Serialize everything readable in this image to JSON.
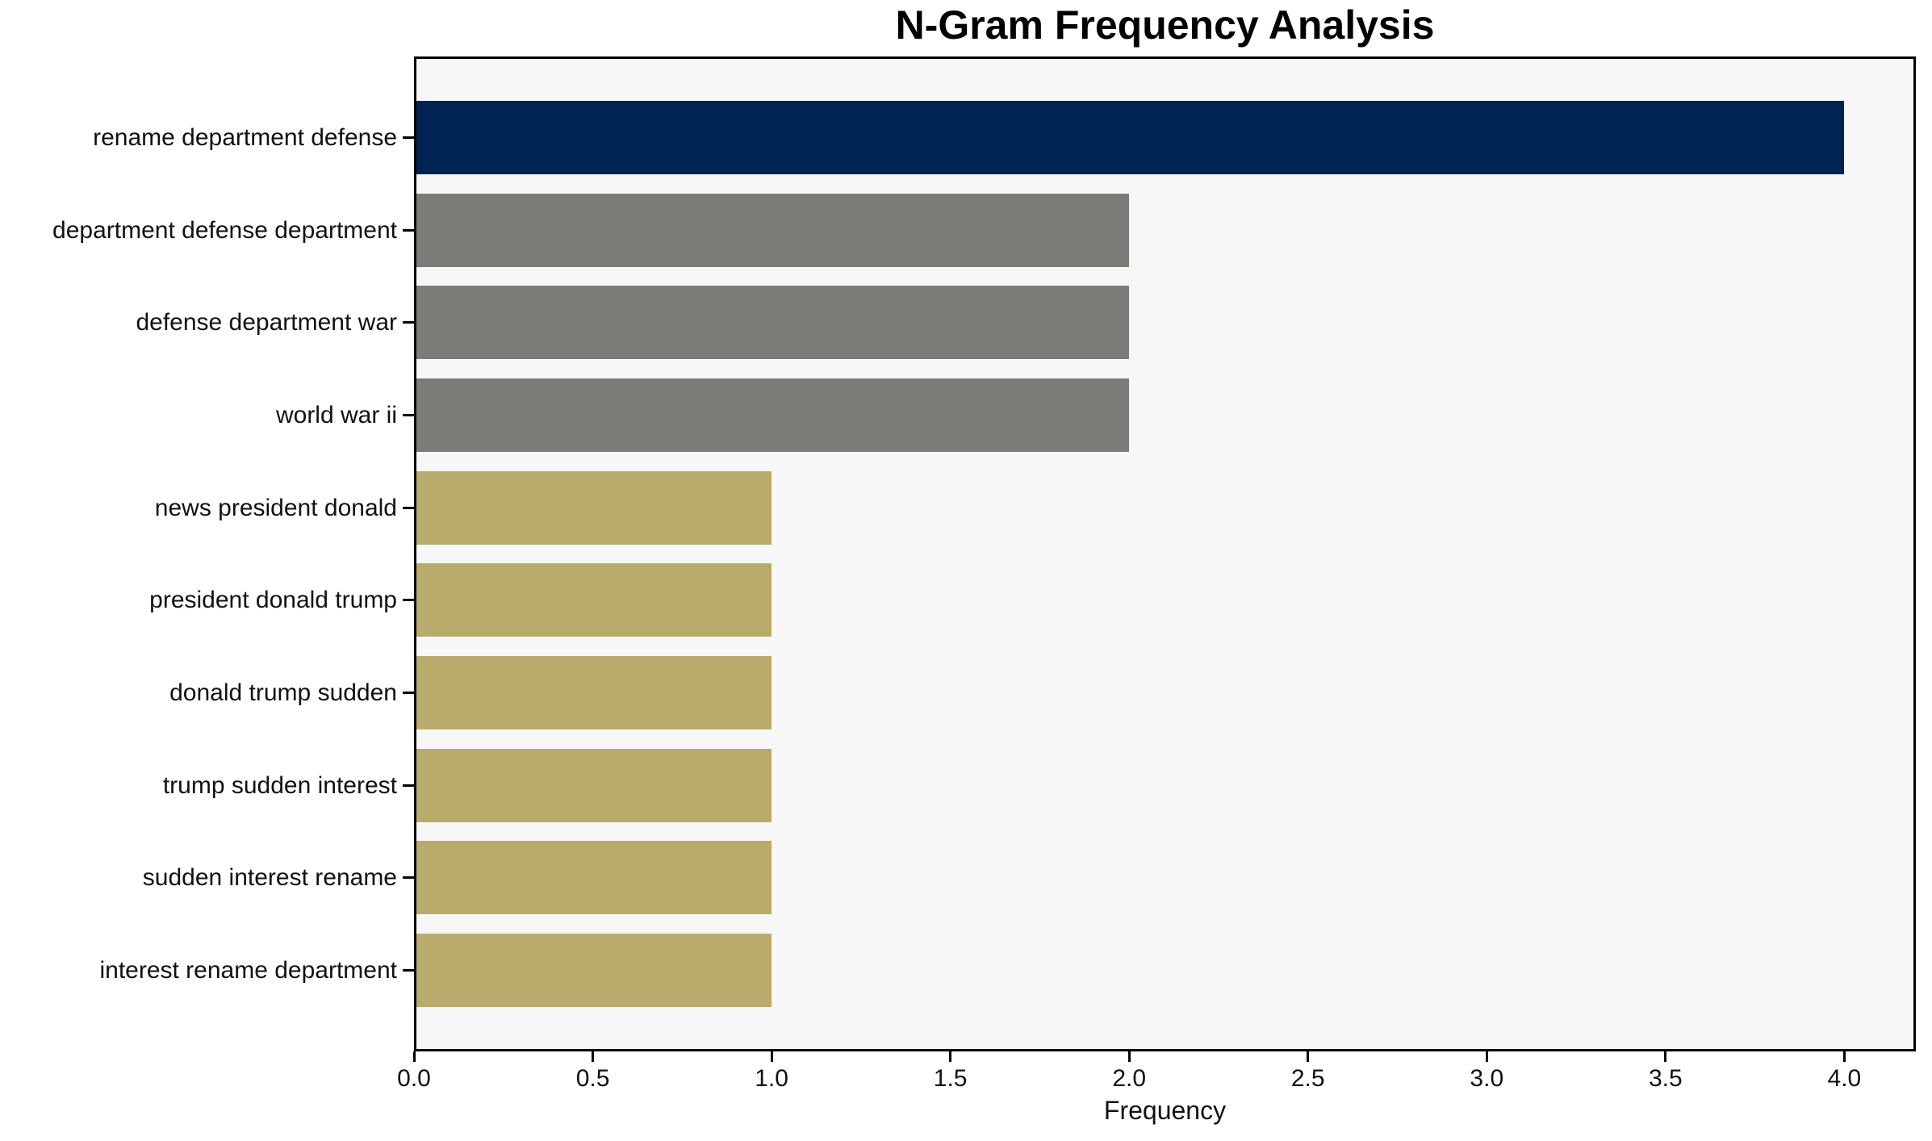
{
  "chart_data": {
    "type": "bar",
    "orientation": "horizontal",
    "title": "N-Gram Frequency Analysis",
    "xlabel": "Frequency",
    "ylabel": "",
    "categories": [
      "rename department defense",
      "department defense department",
      "defense department war",
      "world war ii",
      "news president donald",
      "president donald trump",
      "donald trump sudden",
      "trump sudden interest",
      "sudden interest rename",
      "interest rename department"
    ],
    "values": [
      4,
      2,
      2,
      2,
      1,
      1,
      1,
      1,
      1,
      1
    ],
    "bar_colors": [
      "#002451",
      "#7b7b78",
      "#7b7b78",
      "#7b7b78",
      "#b9ab6b",
      "#b9ab6b",
      "#b9ab6b",
      "#b9ab6b",
      "#b9ab6b",
      "#b9ab6b"
    ],
    "xlim": [
      0,
      4.2
    ],
    "xticks": [
      {
        "value": 0.0,
        "label": "0.0"
      },
      {
        "value": 0.5,
        "label": "0.5"
      },
      {
        "value": 1.0,
        "label": "1.0"
      },
      {
        "value": 1.5,
        "label": "1.5"
      },
      {
        "value": 2.0,
        "label": "2.0"
      },
      {
        "value": 2.5,
        "label": "2.5"
      },
      {
        "value": 3.0,
        "label": "3.0"
      },
      {
        "value": 3.5,
        "label": "3.5"
      },
      {
        "value": 4.0,
        "label": "4.0"
      }
    ],
    "grid": false,
    "legend": "none",
    "plot_background": "#f7f7f7",
    "figure_background": "#ffffff",
    "frame_color": "#000000"
  }
}
